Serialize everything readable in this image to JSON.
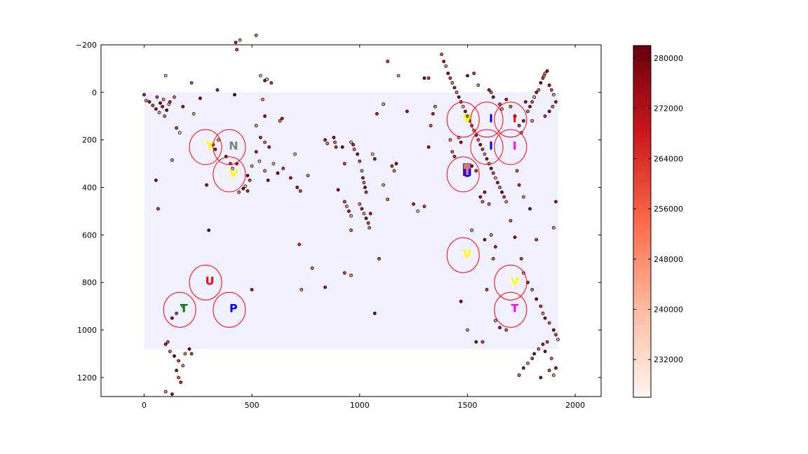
{
  "chart_data": {
    "type": "scatter",
    "title": "",
    "xlabel": "",
    "ylabel": "",
    "xlim": [
      -200,
      2120
    ],
    "ylim": [
      1280,
      -200
    ],
    "y_inverted": true,
    "grid": false,
    "xticks": [
      0,
      500,
      1000,
      1500,
      2000
    ],
    "yticks": [
      -200,
      0,
      200,
      400,
      600,
      800,
      1000,
      1200
    ],
    "background_region": {
      "x": [
        0,
        1920
      ],
      "y": [
        0,
        1080
      ],
      "color": "#f0f0ff"
    },
    "colormap": "Reds",
    "color_range": [
      226000,
      282000
    ],
    "colorbar_ticks": [
      232000,
      240000,
      248000,
      256000,
      264000,
      272000,
      280000
    ],
    "marked_square": {
      "x": [
        1480,
        1515
      ],
      "y": [
        300,
        350
      ],
      "color": "#d9737a"
    },
    "circle_markers": [
      {
        "label": "Y",
        "x": 285,
        "y": 230,
        "color": "#ffff00"
      },
      {
        "label": "N",
        "x": 395,
        "y": 230,
        "color": "#808080"
      },
      {
        "label": "V",
        "x": 395,
        "y": 345,
        "color": "#ffff00"
      },
      {
        "label": "U",
        "x": 285,
        "y": 800,
        "color": "#ff0000"
      },
      {
        "label": "T",
        "x": 165,
        "y": 915,
        "color": "#008000"
      },
      {
        "label": "P",
        "x": 395,
        "y": 915,
        "color": "#0000ff"
      },
      {
        "label": "V",
        "x": 1480,
        "y": 115,
        "color": "#ffff00"
      },
      {
        "label": "I",
        "x": 1590,
        "y": 115,
        "color": "#0000ff"
      },
      {
        "label": "I",
        "x": 1700,
        "y": 115,
        "color": "#ff0000"
      },
      {
        "label": "I",
        "x": 1590,
        "y": 230,
        "color": "#0000ff"
      },
      {
        "label": "I",
        "x": 1700,
        "y": 230,
        "color": "#ff00ff"
      },
      {
        "label": "U",
        "x": 1480,
        "y": 345,
        "color": "#0000ff"
      },
      {
        "label": "V",
        "x": 1480,
        "y": 685,
        "color": "#ffff00"
      },
      {
        "label": "V",
        "x": 1700,
        "y": 800,
        "color": "#ffff00"
      },
      {
        "label": "T",
        "x": 1700,
        "y": 915,
        "color": "#ff00ff"
      }
    ],
    "points": [
      [
        0,
        10,
        268000
      ],
      [
        10,
        35,
        250000
      ],
      [
        25,
        40,
        272000
      ],
      [
        40,
        55,
        260000
      ],
      [
        55,
        70,
        275000
      ],
      [
        70,
        85,
        245000
      ],
      [
        85,
        60,
        270000
      ],
      [
        95,
        100,
        252000
      ],
      [
        105,
        75,
        276000
      ],
      [
        115,
        50,
        240000
      ],
      [
        60,
        20,
        262000
      ],
      [
        75,
        45,
        281000
      ],
      [
        90,
        30,
        248000
      ],
      [
        120,
        40,
        266000
      ],
      [
        140,
        20,
        255000
      ],
      [
        180,
        60,
        270000
      ],
      [
        220,
        -40,
        258000
      ],
      [
        230,
        90,
        244000
      ],
      [
        260,
        25,
        276000
      ],
      [
        150,
        150,
        262000
      ],
      [
        165,
        170,
        238000
      ],
      [
        100,
        -70,
        240000
      ],
      [
        55,
        370,
        276000
      ],
      [
        65,
        490,
        262000
      ],
      [
        130,
        285,
        250000
      ],
      [
        300,
        580,
        280000
      ],
      [
        290,
        390,
        272000
      ],
      [
        320,
        220,
        258000
      ],
      [
        330,
        240,
        270000
      ],
      [
        345,
        200,
        246000
      ],
      [
        380,
        270,
        274000
      ],
      [
        400,
        300,
        262000
      ],
      [
        410,
        320,
        244000
      ],
      [
        430,
        300,
        268000
      ],
      [
        440,
        420,
        250000
      ],
      [
        460,
        405,
        274000
      ],
      [
        470,
        395,
        236000
      ],
      [
        480,
        415,
        266000
      ],
      [
        490,
        370,
        258000
      ],
      [
        480,
        350,
        278000
      ],
      [
        500,
        310,
        244000
      ],
      [
        520,
        250,
        270000
      ],
      [
        340,
        -10,
        268000
      ],
      [
        420,
        10,
        282000
      ],
      [
        430,
        -180,
        262000
      ],
      [
        445,
        -220,
        246000
      ],
      [
        425,
        -210,
        270000
      ],
      [
        520,
        -240,
        252000
      ],
      [
        540,
        -70,
        240000
      ],
      [
        560,
        -50,
        276000
      ],
      [
        570,
        -55,
        238000
      ],
      [
        590,
        -40,
        262000
      ],
      [
        550,
        30,
        250000
      ],
      [
        560,
        100,
        272000
      ],
      [
        520,
        140,
        246000
      ],
      [
        540,
        190,
        266000
      ],
      [
        560,
        210,
        254000
      ],
      [
        580,
        230,
        270000
      ],
      [
        600,
        300,
        244000
      ],
      [
        620,
        340,
        276000
      ],
      [
        645,
        320,
        262000
      ],
      [
        560,
        330,
        248000
      ],
      [
        575,
        370,
        272000
      ],
      [
        535,
        290,
        240000
      ],
      [
        630,
        120,
        254000
      ],
      [
        640,
        110,
        268000
      ],
      [
        700,
        260,
        244000
      ],
      [
        710,
        400,
        272000
      ],
      [
        725,
        415,
        260000
      ],
      [
        760,
        350,
        250000
      ],
      [
        680,
        360,
        270000
      ],
      [
        720,
        640,
        262000
      ],
      [
        730,
        830,
        248000
      ],
      [
        780,
        740,
        252000
      ],
      [
        840,
        820,
        270000
      ],
      [
        900,
        410,
        276000
      ],
      [
        930,
        460,
        262000
      ],
      [
        940,
        480,
        248000
      ],
      [
        950,
        500,
        270000
      ],
      [
        960,
        520,
        242000
      ],
      [
        880,
        190,
        272000
      ],
      [
        885,
        210,
        256000
      ],
      [
        890,
        230,
        264000
      ],
      [
        840,
        200,
        270000
      ],
      [
        850,
        215,
        250000
      ],
      [
        920,
        230,
        276000
      ],
      [
        930,
        300,
        262000
      ],
      [
        960,
        210,
        244000
      ],
      [
        970,
        220,
        268000
      ],
      [
        975,
        240,
        252000
      ],
      [
        990,
        260,
        274000
      ],
      [
        1000,
        290,
        260000
      ],
      [
        1010,
        330,
        246000
      ],
      [
        1015,
        360,
        270000
      ],
      [
        1020,
        380,
        254000
      ],
      [
        1025,
        400,
        276000
      ],
      [
        1030,
        420,
        262000
      ],
      [
        1000,
        470,
        248000
      ],
      [
        1010,
        490,
        270000
      ],
      [
        1020,
        510,
        244000
      ],
      [
        1030,
        530,
        276000
      ],
      [
        1040,
        550,
        262000
      ],
      [
        1045,
        570,
        250000
      ],
      [
        1050,
        510,
        268000
      ],
      [
        1060,
        260,
        240000
      ],
      [
        1070,
        280,
        270000
      ],
      [
        960,
        580,
        256000
      ],
      [
        930,
        760,
        262000
      ],
      [
        960,
        770,
        248000
      ],
      [
        1070,
        930,
        274000
      ],
      [
        1090,
        700,
        260000
      ],
      [
        1110,
        390,
        246000
      ],
      [
        1150,
        310,
        262000
      ],
      [
        1160,
        330,
        250000
      ],
      [
        1080,
        90,
        268000
      ],
      [
        1110,
        50,
        244000
      ],
      [
        1130,
        -130,
        262000
      ],
      [
        1180,
        -70,
        248000
      ],
      [
        1220,
        80,
        272000
      ],
      [
        1250,
        470,
        268000
      ],
      [
        1270,
        500,
        240000
      ],
      [
        1300,
        480,
        262000
      ],
      [
        1320,
        230,
        274000
      ],
      [
        1330,
        140,
        256000
      ],
      [
        1340,
        90,
        268000
      ],
      [
        1350,
        60,
        250000
      ],
      [
        1300,
        -60,
        276000
      ],
      [
        1320,
        -60,
        262000
      ],
      [
        1380,
        -160,
        258000
      ],
      [
        1390,
        -130,
        270000
      ],
      [
        1400,
        -110,
        248000
      ],
      [
        1410,
        -80,
        276000
      ],
      [
        1420,
        -60,
        262000
      ],
      [
        1430,
        -40,
        250000
      ],
      [
        1440,
        -20,
        270000
      ],
      [
        1450,
        0,
        252000
      ],
      [
        1460,
        20,
        276000
      ],
      [
        1470,
        40,
        262000
      ],
      [
        1480,
        60,
        244000
      ],
      [
        1490,
        80,
        270000
      ],
      [
        1500,
        100,
        256000
      ],
      [
        1510,
        120,
        274000
      ],
      [
        1520,
        140,
        260000
      ],
      [
        1530,
        160,
        246000
      ],
      [
        1540,
        180,
        270000
      ],
      [
        1550,
        200,
        254000
      ],
      [
        1560,
        220,
        276000
      ],
      [
        1570,
        240,
        262000
      ],
      [
        1580,
        260,
        248000
      ],
      [
        1590,
        280,
        272000
      ],
      [
        1600,
        300,
        256000
      ],
      [
        1610,
        320,
        274000
      ],
      [
        1620,
        340,
        260000
      ],
      [
        1630,
        360,
        246000
      ],
      [
        1640,
        380,
        270000
      ],
      [
        1650,
        400,
        254000
      ],
      [
        1660,
        420,
        276000
      ],
      [
        1670,
        440,
        262000
      ],
      [
        1680,
        460,
        248000
      ],
      [
        1560,
        440,
        272000
      ],
      [
        1570,
        460,
        256000
      ],
      [
        1580,
        420,
        268000
      ],
      [
        1600,
        470,
        252000
      ],
      [
        1520,
        310,
        276000
      ],
      [
        1540,
        330,
        262000
      ],
      [
        1460,
        190,
        248000
      ],
      [
        1470,
        210,
        272000
      ],
      [
        1430,
        250,
        256000
      ],
      [
        1440,
        270,
        266000
      ],
      [
        1420,
        200,
        250000
      ],
      [
        1500,
        -70,
        276000
      ],
      [
        1530,
        -80,
        262000
      ],
      [
        1550,
        -30,
        248000
      ],
      [
        1600,
        -10,
        272000
      ],
      [
        1610,
        0,
        256000
      ],
      [
        1620,
        20,
        274000
      ],
      [
        1650,
        50,
        260000
      ],
      [
        1660,
        70,
        246000
      ],
      [
        1680,
        30,
        270000
      ],
      [
        1700,
        60,
        254000
      ],
      [
        1720,
        100,
        276000
      ],
      [
        1740,
        140,
        262000
      ],
      [
        1750,
        170,
        248000
      ],
      [
        1760,
        120,
        272000
      ],
      [
        1780,
        80,
        256000
      ],
      [
        1790,
        60,
        274000
      ],
      [
        1800,
        40,
        260000
      ],
      [
        1810,
        20,
        246000
      ],
      [
        1820,
        0,
        270000
      ],
      [
        1830,
        -10,
        254000
      ],
      [
        1840,
        -40,
        276000
      ],
      [
        1850,
        -60,
        262000
      ],
      [
        1860,
        -80,
        248000
      ],
      [
        1870,
        -90,
        272000
      ],
      [
        1855,
        -70,
        256000
      ],
      [
        1880,
        -30,
        274000
      ],
      [
        1890,
        -10,
        260000
      ],
      [
        1900,
        10,
        246000
      ],
      [
        1910,
        40,
        270000
      ],
      [
        1895,
        60,
        254000
      ],
      [
        1880,
        80,
        276000
      ],
      [
        1860,
        100,
        262000
      ],
      [
        1800,
        120,
        248000
      ],
      [
        1770,
        40,
        272000
      ],
      [
        1730,
        330,
        256000
      ],
      [
        1740,
        390,
        266000
      ],
      [
        1760,
        440,
        250000
      ],
      [
        1790,
        490,
        276000
      ],
      [
        1820,
        620,
        262000
      ],
      [
        1900,
        570,
        248000
      ],
      [
        1910,
        460,
        272000
      ],
      [
        1700,
        540,
        256000
      ],
      [
        1720,
        610,
        274000
      ],
      [
        1750,
        700,
        260000
      ],
      [
        1760,
        760,
        246000
      ],
      [
        1780,
        800,
        270000
      ],
      [
        1800,
        830,
        254000
      ],
      [
        1820,
        870,
        276000
      ],
      [
        1840,
        900,
        262000
      ],
      [
        1850,
        930,
        248000
      ],
      [
        1860,
        950,
        272000
      ],
      [
        1880,
        970,
        256000
      ],
      [
        1900,
        1000,
        274000
      ],
      [
        1910,
        1020,
        260000
      ],
      [
        1920,
        1040,
        246000
      ],
      [
        1850,
        1060,
        270000
      ],
      [
        1830,
        1080,
        254000
      ],
      [
        1810,
        1100,
        276000
      ],
      [
        1800,
        1120,
        262000
      ],
      [
        1780,
        1140,
        248000
      ],
      [
        1760,
        1160,
        272000
      ],
      [
        1740,
        1190,
        256000
      ],
      [
        1840,
        1200,
        274000
      ],
      [
        1880,
        1170,
        260000
      ],
      [
        1900,
        1190,
        246000
      ],
      [
        1910,
        1160,
        270000
      ],
      [
        1890,
        1120,
        254000
      ],
      [
        1860,
        1090,
        276000
      ],
      [
        1870,
        1050,
        262000
      ],
      [
        1520,
        580,
        248000
      ],
      [
        1580,
        620,
        272000
      ],
      [
        1620,
        700,
        256000
      ],
      [
        1630,
        650,
        266000
      ],
      [
        1610,
        600,
        250000
      ],
      [
        1470,
        880,
        276000
      ],
      [
        1590,
        830,
        262000
      ],
      [
        1630,
        960,
        248000
      ],
      [
        1650,
        990,
        272000
      ],
      [
        1680,
        1000,
        256000
      ],
      [
        1540,
        1050,
        274000
      ],
      [
        1570,
        1050,
        260000
      ],
      [
        1500,
        1000,
        246000
      ],
      [
        100,
        1060,
        270000
      ],
      [
        120,
        1090,
        254000
      ],
      [
        140,
        1110,
        276000
      ],
      [
        160,
        1130,
        262000
      ],
      [
        180,
        1150,
        248000
      ],
      [
        150,
        1170,
        272000
      ],
      [
        160,
        1200,
        256000
      ],
      [
        170,
        1220,
        266000
      ],
      [
        190,
        1100,
        250000
      ],
      [
        210,
        1080,
        276000
      ],
      [
        220,
        1100,
        262000
      ],
      [
        100,
        1260,
        248000
      ],
      [
        130,
        1270,
        272000
      ],
      [
        110,
        1050,
        256000
      ],
      [
        130,
        950,
        274000
      ],
      [
        150,
        930,
        260000
      ],
      [
        180,
        900,
        246000
      ],
      [
        500,
        830,
        270000
      ],
      [
        1130,
        450,
        254000
      ],
      [
        1170,
        300,
        276000
      ]
    ]
  }
}
